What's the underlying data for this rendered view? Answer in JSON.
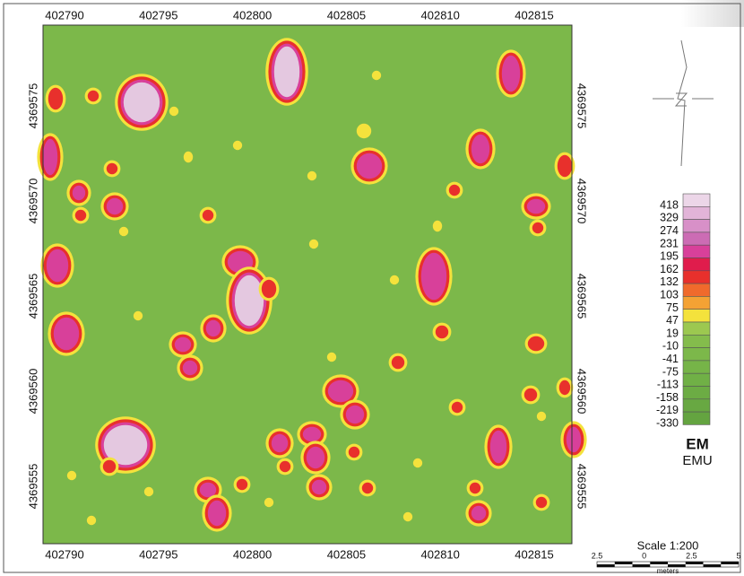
{
  "map": {
    "x_labels": [
      "402790",
      "402795",
      "402800",
      "402805",
      "402810",
      "402815"
    ],
    "y_labels": [
      "4369575",
      "4369570",
      "4369565",
      "4369560",
      "4369555"
    ],
    "legend": {
      "entries": [
        {
          "label": "418",
          "color": "#ecd6e8"
        },
        {
          "label": "329",
          "color": "#e2b4d8"
        },
        {
          "label": "274",
          "color": "#d890c8"
        },
        {
          "label": "231",
          "color": "#cc6cb4"
        },
        {
          "label": "195",
          "color": "#d8409a"
        },
        {
          "label": "162",
          "color": "#e01c4c"
        },
        {
          "label": "132",
          "color": "#e8302c"
        },
        {
          "label": "103",
          "color": "#f06a2c"
        },
        {
          "label": "75",
          "color": "#f4a234"
        },
        {
          "label": "47",
          "color": "#f4e23c"
        },
        {
          "label": "19",
          "color": "#9cc850"
        },
        {
          "label": "-10",
          "color": "#84bc4c"
        },
        {
          "label": "-41",
          "color": "#7cb84a"
        },
        {
          "label": "-75",
          "color": "#76b448"
        },
        {
          "label": "-113",
          "color": "#70b046"
        },
        {
          "label": "-158",
          "color": "#6cac44"
        },
        {
          "label": "-219",
          "color": "#68a842"
        },
        {
          "label": "-330",
          "color": "#64a440"
        }
      ],
      "title": "EM",
      "unit": "EMU"
    },
    "scale": {
      "title": "Scale 1:200",
      "ticks": [
        "2.5",
        "0",
        "2.5",
        "5"
      ],
      "unit": "meters"
    }
  }
}
